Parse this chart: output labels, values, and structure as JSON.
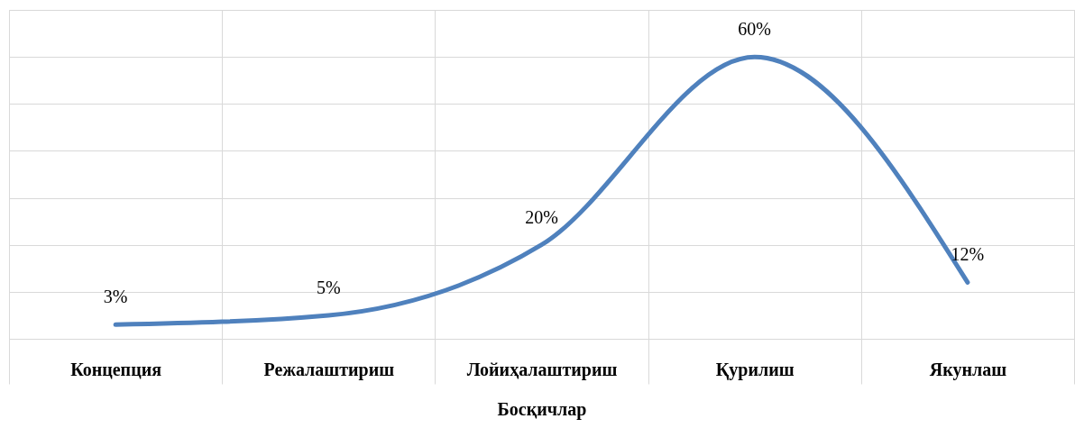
{
  "chart_data": {
    "type": "line",
    "xlabel": "Босқичлар",
    "categories": [
      "Концепция",
      "Режалаштириш",
      "Лойиҳалаштириш",
      "Қурилиш",
      "Якунлаш"
    ],
    "values": [
      3,
      5,
      20,
      60,
      12
    ],
    "value_labels": [
      "3%",
      "5%",
      "20%",
      "60%",
      "12%"
    ],
    "color": "#4f81bd",
    "ylim": [
      0,
      70
    ],
    "yticks": [
      {
        "value": 0,
        "label": null
      },
      {
        "value": 10,
        "label": null
      },
      {
        "value": 20,
        "label": null
      },
      {
        "value": 30,
        "label": null
      },
      {
        "value": 40,
        "label": null
      },
      {
        "value": 50,
        "label": null
      },
      {
        "value": 60,
        "label": null
      },
      {
        "value": 70,
        "label": null
      }
    ],
    "grid": true,
    "tick_labels": "x"
  }
}
